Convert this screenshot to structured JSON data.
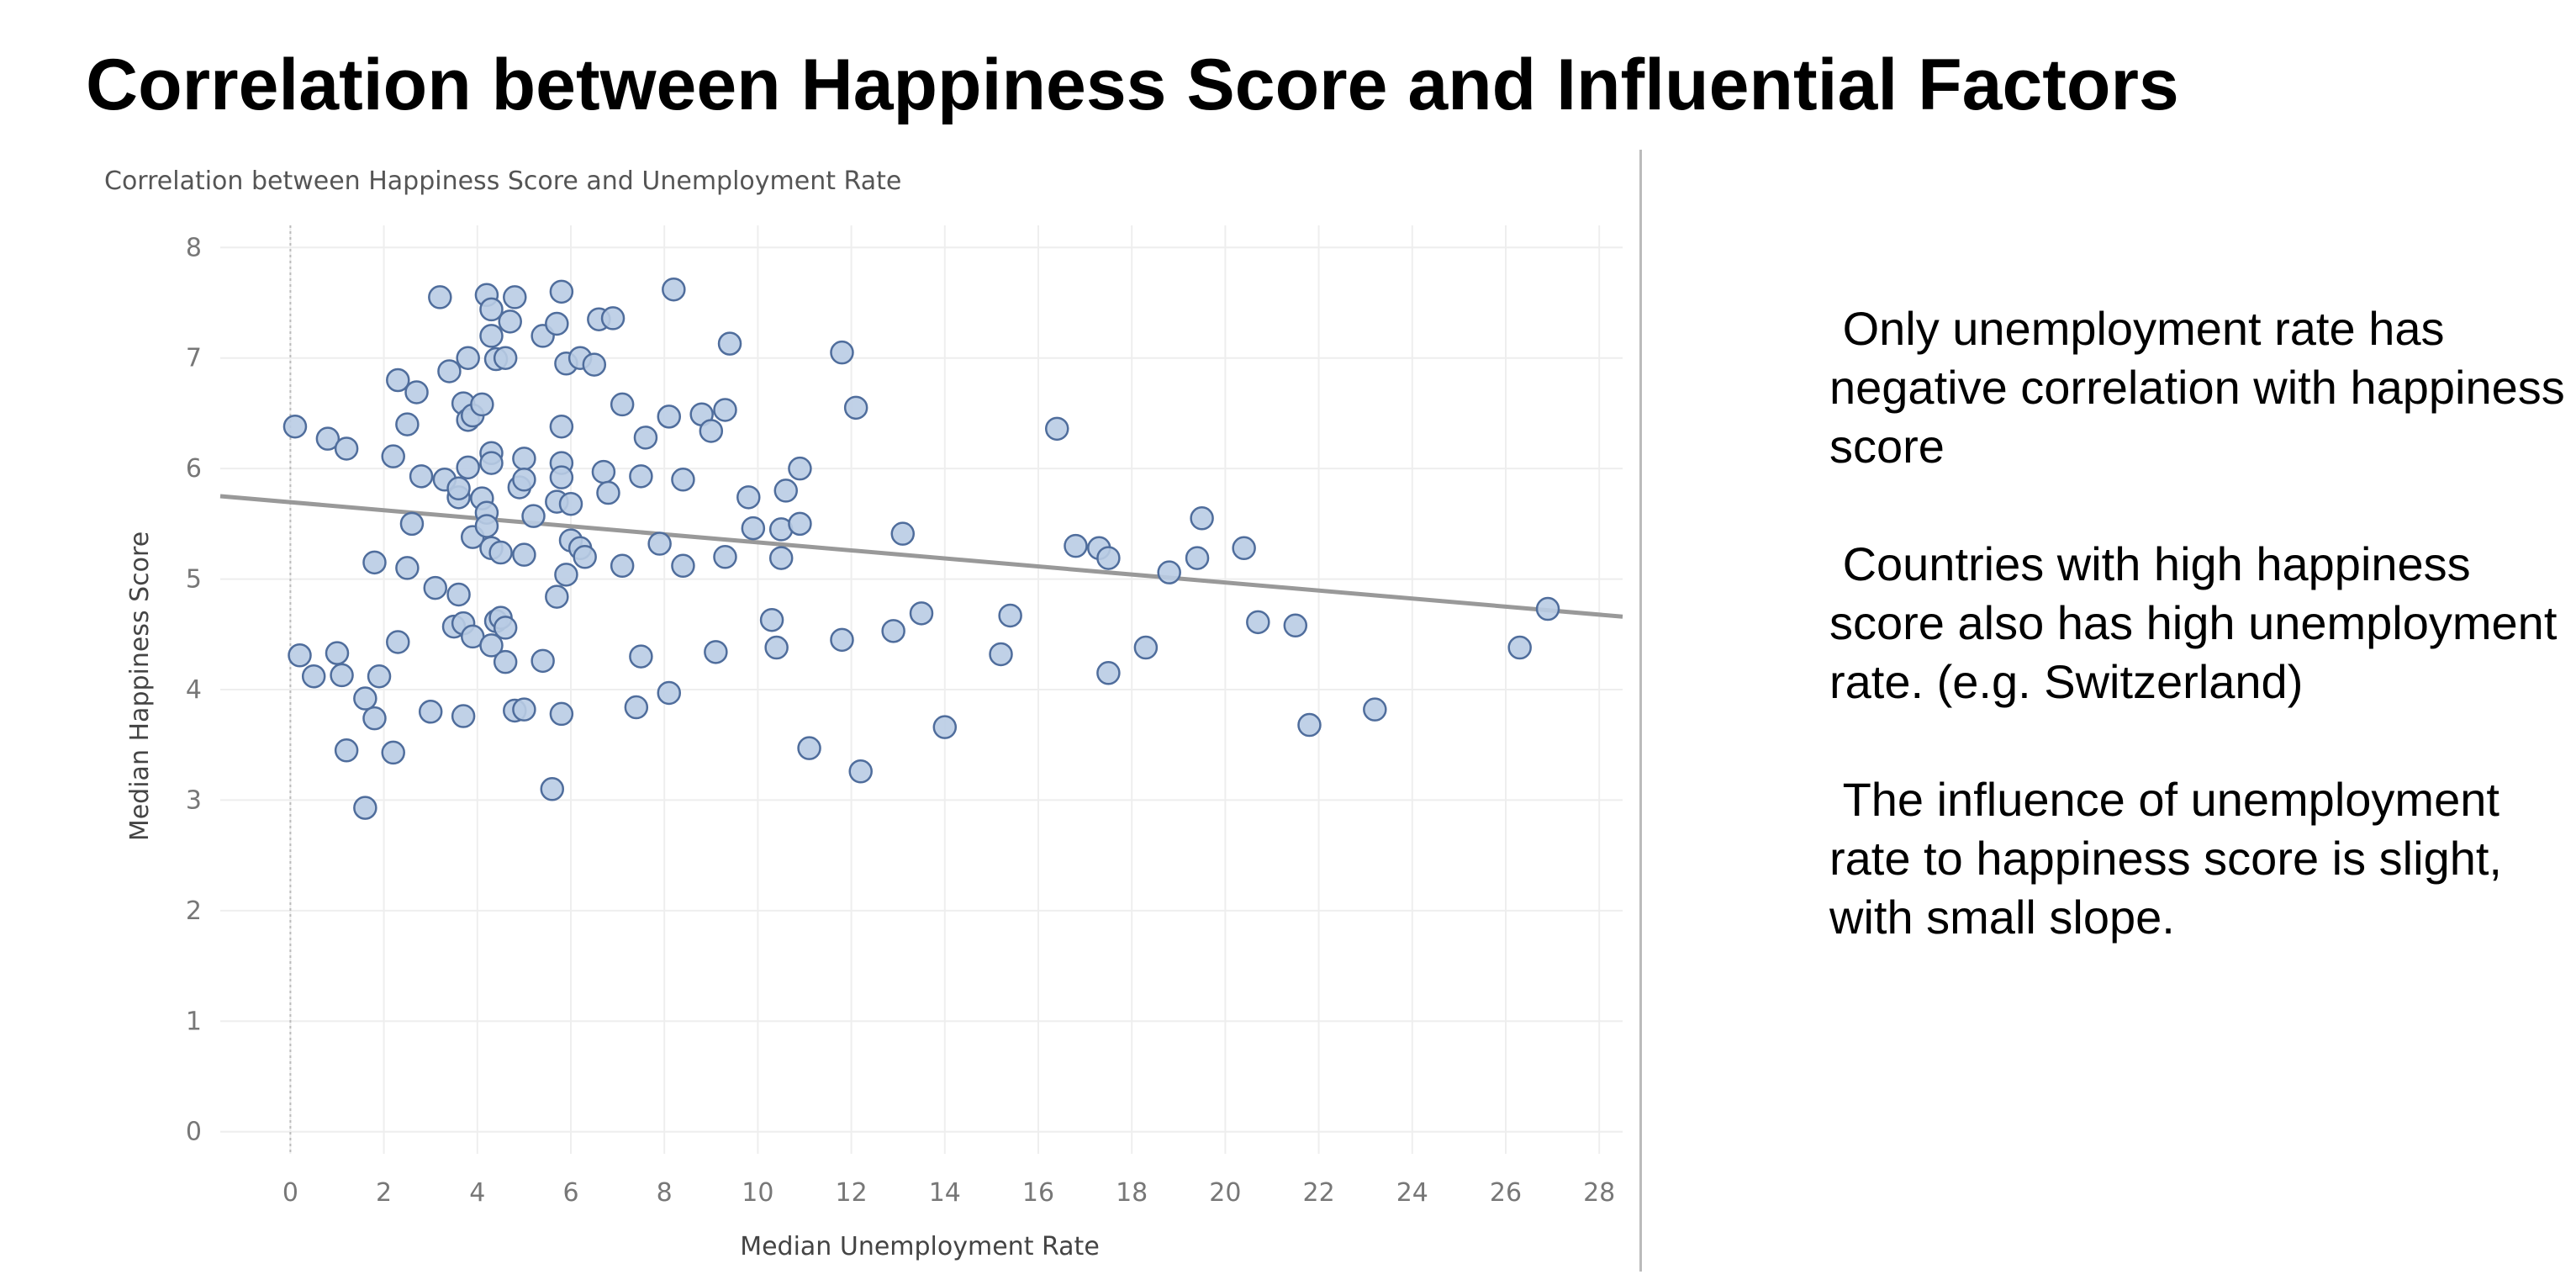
{
  "page": {
    "title": "Correlation between Happiness Score and Influential Factors"
  },
  "notes": [
    " Only unemployment rate has negative correlation with happiness score",
    " Countries with high happiness score also has high unemployment rate. (e.g. Switzerland)",
    " The influence of unemployment rate to happiness score is slight, with small slope."
  ],
  "chart_data": {
    "type": "scatter",
    "title": "Correlation between Happiness Score and Unemployment Rate",
    "xlabel": "Median Unemployment Rate",
    "ylabel": "Median Happiness Score",
    "xlim": [
      -1.5,
      28.5
    ],
    "ylim": [
      -0.2,
      8.2
    ],
    "x_ticks": [
      0,
      2,
      4,
      6,
      8,
      10,
      12,
      14,
      16,
      18,
      20,
      22,
      24,
      26,
      28
    ],
    "y_ticks": [
      0,
      1,
      2,
      3,
      4,
      5,
      6,
      7,
      8
    ],
    "grid": true,
    "zero_line": true,
    "colors": {
      "point_fill": "#b9cce4",
      "point_stroke": "#4f6d9c",
      "trend": "#999999",
      "grid": "#eeeeee"
    },
    "trend_line": {
      "x": [
        -1.5,
        28.5
      ],
      "y": [
        5.75,
        4.66
      ]
    },
    "points": [
      [
        0.1,
        6.38
      ],
      [
        0.8,
        6.27
      ],
      [
        1.2,
        6.18
      ],
      [
        0.2,
        4.31
      ],
      [
        0.5,
        4.12
      ],
      [
        1.0,
        4.33
      ],
      [
        1.1,
        4.13
      ],
      [
        1.2,
        3.45
      ],
      [
        1.6,
        3.92
      ],
      [
        1.6,
        2.93
      ],
      [
        1.8,
        3.74
      ],
      [
        1.8,
        5.15
      ],
      [
        1.9,
        4.12
      ],
      [
        2.2,
        3.43
      ],
      [
        2.3,
        4.43
      ],
      [
        2.2,
        6.11
      ],
      [
        2.3,
        6.8
      ],
      [
        2.5,
        6.4
      ],
      [
        2.5,
        5.1
      ],
      [
        2.6,
        5.5
      ],
      [
        2.7,
        6.69
      ],
      [
        2.8,
        5.93
      ],
      [
        3.0,
        3.8
      ],
      [
        3.1,
        4.92
      ],
      [
        3.2,
        7.55
      ],
      [
        3.3,
        5.9
      ],
      [
        3.4,
        6.88
      ],
      [
        3.5,
        4.57
      ],
      [
        3.6,
        5.74
      ],
      [
        3.6,
        5.82
      ],
      [
        3.6,
        4.86
      ],
      [
        3.7,
        3.76
      ],
      [
        3.7,
        4.6
      ],
      [
        3.7,
        6.59
      ],
      [
        3.8,
        7.0
      ],
      [
        3.8,
        6.01
      ],
      [
        3.8,
        6.44
      ],
      [
        3.9,
        6.48
      ],
      [
        3.9,
        5.38
      ],
      [
        3.9,
        4.48
      ],
      [
        4.1,
        5.73
      ],
      [
        4.1,
        6.58
      ],
      [
        4.2,
        5.6
      ],
      [
        4.2,
        5.48
      ],
      [
        4.2,
        7.57
      ],
      [
        4.3,
        7.2
      ],
      [
        4.3,
        7.44
      ],
      [
        4.3,
        6.14
      ],
      [
        4.3,
        6.05
      ],
      [
        4.3,
        5.28
      ],
      [
        4.3,
        4.4
      ],
      [
        4.4,
        4.62
      ],
      [
        4.4,
        6.99
      ],
      [
        4.5,
        5.24
      ],
      [
        4.5,
        4.65
      ],
      [
        4.6,
        4.25
      ],
      [
        4.6,
        4.56
      ],
      [
        4.6,
        7.0
      ],
      [
        4.7,
        7.33
      ],
      [
        4.8,
        7.55
      ],
      [
        4.8,
        3.81
      ],
      [
        4.9,
        5.83
      ],
      [
        5.0,
        6.09
      ],
      [
        5.0,
        5.9
      ],
      [
        5.0,
        5.22
      ],
      [
        5.0,
        3.82
      ],
      [
        5.2,
        5.57
      ],
      [
        5.4,
        4.26
      ],
      [
        5.4,
        7.2
      ],
      [
        5.6,
        3.1
      ],
      [
        5.7,
        7.31
      ],
      [
        5.7,
        4.84
      ],
      [
        5.7,
        5.7
      ],
      [
        5.8,
        7.6
      ],
      [
        5.8,
        6.38
      ],
      [
        5.8,
        6.05
      ],
      [
        5.8,
        5.92
      ],
      [
        5.8,
        3.78
      ],
      [
        5.9,
        5.04
      ],
      [
        5.9,
        6.95
      ],
      [
        6.0,
        5.68
      ],
      [
        6.0,
        5.35
      ],
      [
        6.2,
        7.0
      ],
      [
        6.2,
        5.28
      ],
      [
        6.3,
        5.2
      ],
      [
        6.5,
        6.94
      ],
      [
        6.6,
        7.35
      ],
      [
        6.7,
        5.97
      ],
      [
        6.8,
        5.78
      ],
      [
        6.9,
        7.36
      ],
      [
        7.1,
        6.58
      ],
      [
        7.1,
        5.12
      ],
      [
        7.4,
        3.84
      ],
      [
        7.5,
        4.3
      ],
      [
        7.5,
        5.93
      ],
      [
        7.6,
        6.28
      ],
      [
        7.9,
        5.32
      ],
      [
        8.1,
        6.47
      ],
      [
        8.1,
        3.97
      ],
      [
        8.2,
        7.62
      ],
      [
        8.4,
        5.9
      ],
      [
        8.4,
        5.12
      ],
      [
        8.8,
        6.49
      ],
      [
        9.0,
        6.34
      ],
      [
        9.1,
        4.34
      ],
      [
        9.3,
        6.53
      ],
      [
        9.3,
        5.2
      ],
      [
        9.4,
        7.13
      ],
      [
        9.8,
        5.74
      ],
      [
        9.9,
        5.46
      ],
      [
        10.3,
        4.63
      ],
      [
        10.4,
        4.38
      ],
      [
        10.5,
        5.45
      ],
      [
        10.5,
        5.19
      ],
      [
        10.6,
        5.8
      ],
      [
        10.9,
        5.5
      ],
      [
        10.9,
        6.0
      ],
      [
        11.1,
        3.47
      ],
      [
        11.8,
        7.05
      ],
      [
        11.8,
        4.45
      ],
      [
        12.1,
        6.55
      ],
      [
        12.2,
        3.26
      ],
      [
        12.9,
        4.53
      ],
      [
        13.1,
        5.41
      ],
      [
        13.5,
        4.69
      ],
      [
        14.0,
        3.66
      ],
      [
        15.2,
        4.32
      ],
      [
        15.4,
        4.67
      ],
      [
        16.4,
        6.36
      ],
      [
        16.8,
        5.3
      ],
      [
        17.3,
        5.28
      ],
      [
        17.5,
        5.19
      ],
      [
        17.5,
        4.15
      ],
      [
        18.3,
        4.38
      ],
      [
        18.8,
        5.06
      ],
      [
        19.4,
        5.19
      ],
      [
        19.5,
        5.55
      ],
      [
        20.4,
        5.28
      ],
      [
        20.7,
        4.61
      ],
      [
        21.5,
        4.58
      ],
      [
        21.8,
        3.68
      ],
      [
        23.2,
        3.82
      ],
      [
        26.3,
        4.38
      ],
      [
        26.9,
        4.73
      ]
    ]
  }
}
